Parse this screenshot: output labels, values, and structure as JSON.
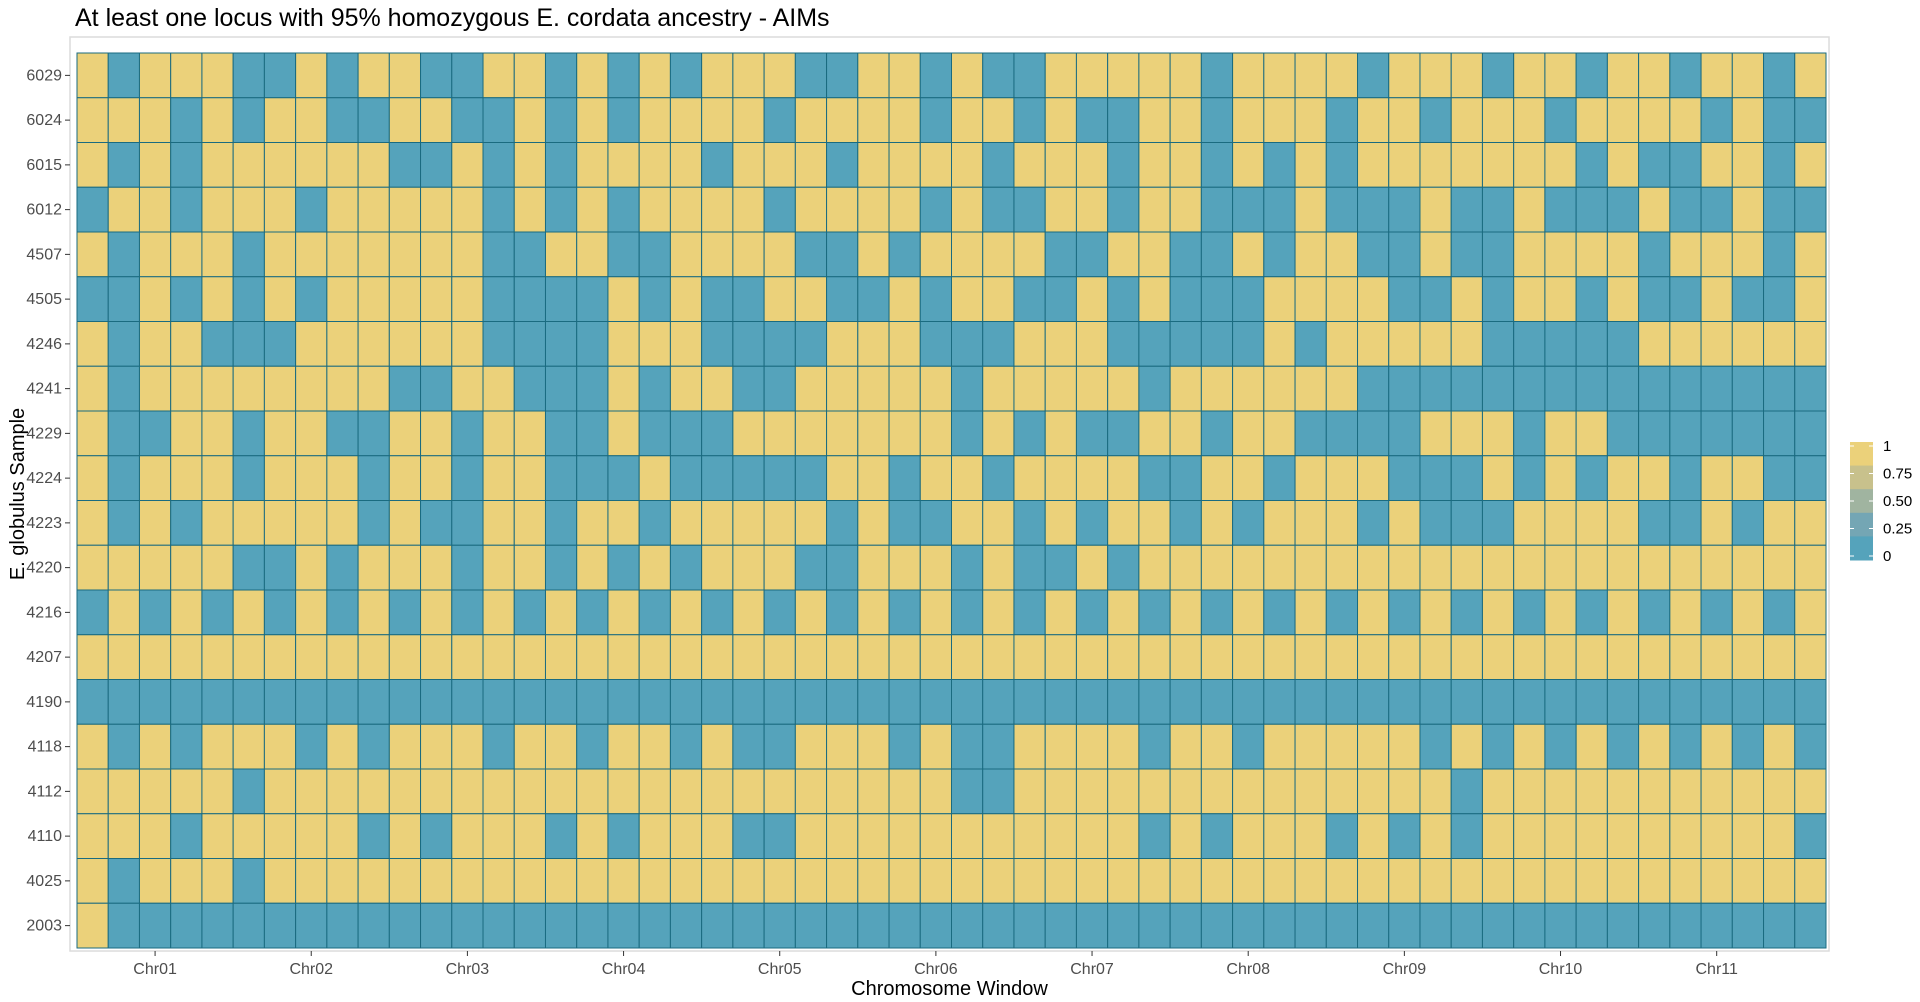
{
  "chart_data": {
    "type": "heatmap",
    "title": "At least one locus with 95% homozygous E. cordata ancestry - AIMs",
    "xlabel": "Chromosome Window",
    "ylabel": "E. globulus Sample",
    "x_tick_labels": [
      "Chr01",
      "Chr02",
      "Chr03",
      "Chr04",
      "Chr05",
      "Chr06",
      "Chr07",
      "Chr08",
      "Chr09",
      "Chr10",
      "Chr11"
    ],
    "x_tick_column_index": [
      2,
      7,
      12,
      17,
      22,
      27,
      32,
      37,
      42,
      47,
      52
    ],
    "n_columns": 56,
    "samples": [
      "6029",
      "6024",
      "6015",
      "6012",
      "4507",
      "4505",
      "4246",
      "4241",
      "4229",
      "4224",
      "4223",
      "4220",
      "4216",
      "4207",
      "4190",
      "4118",
      "4112",
      "4110",
      "4025",
      "2003"
    ],
    "values": [
      "10111001011001101010111001101001111101111011101101101101",
      "11101011001100101011110111101101001101110110111011110100",
      "10101111110010101111011101111011101101010111111101001101",
      "01101110111110101011110111101001101100010001001000100100",
      "10111011111110011001111001011110011001011001001111011101",
      "00101010111110000101001100101100101000111100101101001001",
      "10110001111110000111000011100011100000101111100000111111",
      "10111111110011000101100111110111110111111000000000000000",
      "10011011001101100100011111110101001101100001110110000000",
      "10111011101101100010000011011011110011011100010101101100",
      "10101111101001101101111101001101011010111010001111001011",
      "11111001011101101010111001110100101111111111111111111111",
      "01010101010101010101010101010101010101010101010101010101",
      "11111111111111111111111111111111111111111111111111111111",
      "00000000000000000000000000000000000000000000000000000000",
      "10101110101110110110100111010011110110111110101010101010",
      "11111011111111111111111111110011111111111111011111111111",
      "11101111101011101011100111111111110101110101011111111110",
      "10111011111111111111111111111111111111111111111111111111",
      "10000000000000000000000000000000000000000000000000000000"
    ],
    "legend": {
      "breaks": [
        "1",
        "0.75",
        "0.50",
        "0.25",
        "0"
      ],
      "colors": [
        "#ebd17a",
        "#c8c18c",
        "#a0b4a0",
        "#74a6b4",
        "#55a3bb"
      ],
      "placement": "right"
    },
    "colors": {
      "high": "#ebd17a",
      "low": "#55a3bb",
      "cell_border": "#1a6b80",
      "panel_border": "#dcdcdc",
      "tick": "#333333"
    }
  }
}
